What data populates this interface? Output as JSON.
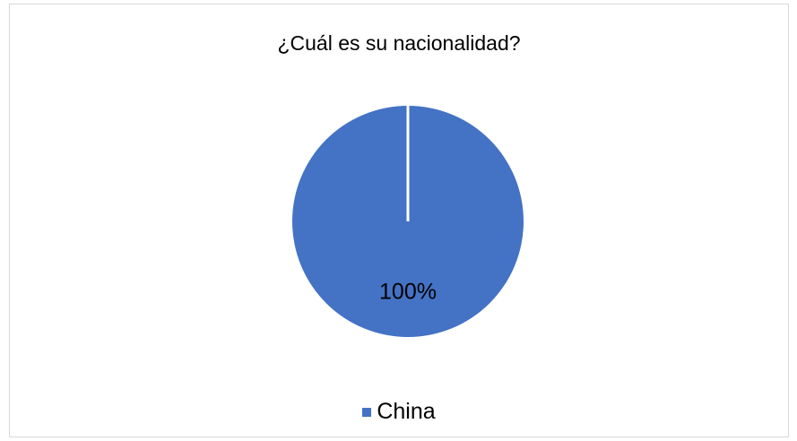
{
  "chart_data": {
    "type": "pie",
    "title": "¿Cuál es su nacionalidad?",
    "categories": [
      "China"
    ],
    "values": [
      100
    ],
    "data_labels": [
      "100%"
    ],
    "colors": [
      "#4472c4"
    ],
    "legend_position": "bottom"
  }
}
